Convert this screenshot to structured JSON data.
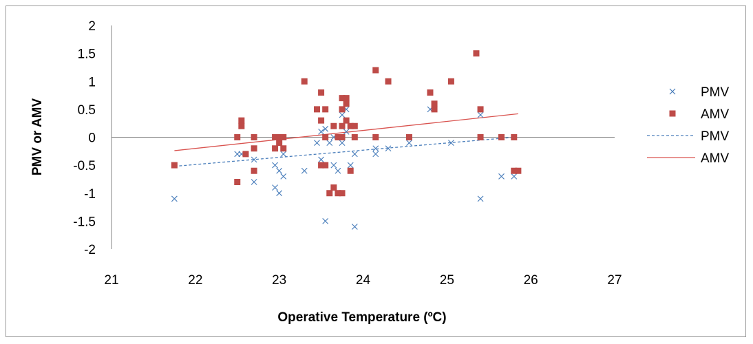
{
  "chart_data": {
    "type": "scatter",
    "title": "",
    "xlabel": "Operative Temperature (ºC)",
    "ylabel": "PMV or AMV",
    "xlim": [
      21,
      27
    ],
    "ylim": [
      -2,
      2
    ],
    "x_ticks": [
      "21",
      "22",
      "23",
      "24",
      "25",
      "26",
      "27"
    ],
    "y_ticks": [
      "2",
      "1.5",
      "1",
      "0.5",
      "0",
      "-0.5",
      "-1",
      "-1.5",
      "-2"
    ],
    "legend_position": "right",
    "series": [
      {
        "name": "PMV",
        "kind": "points",
        "marker": "x",
        "color": "#4a7ebb",
        "points": [
          [
            21.75,
            -1.1
          ],
          [
            22.5,
            -0.3
          ],
          [
            22.55,
            -0.3
          ],
          [
            22.7,
            -0.4
          ],
          [
            22.7,
            -0.8
          ],
          [
            22.95,
            -0.5
          ],
          [
            22.95,
            -0.9
          ],
          [
            23.0,
            -0.6
          ],
          [
            23.0,
            -1.0
          ],
          [
            23.05,
            -0.3
          ],
          [
            23.05,
            -0.7
          ],
          [
            23.3,
            -0.6
          ],
          [
            23.45,
            -0.1
          ],
          [
            23.5,
            -0.4
          ],
          [
            23.5,
            0.1
          ],
          [
            23.55,
            0.15
          ],
          [
            23.55,
            -1.5
          ],
          [
            23.6,
            -0.1
          ],
          [
            23.65,
            0.0
          ],
          [
            23.65,
            -0.5
          ],
          [
            23.7,
            -0.6
          ],
          [
            23.75,
            0.0
          ],
          [
            23.75,
            0.4
          ],
          [
            23.75,
            -0.1
          ],
          [
            23.8,
            0.1
          ],
          [
            23.8,
            0.5
          ],
          [
            23.85,
            -0.5
          ],
          [
            23.9,
            -0.3
          ],
          [
            23.9,
            -1.6
          ],
          [
            24.15,
            -0.2
          ],
          [
            24.15,
            -0.3
          ],
          [
            24.3,
            -0.2
          ],
          [
            24.55,
            -0.1
          ],
          [
            24.8,
            0.5
          ],
          [
            25.05,
            -0.1
          ],
          [
            25.4,
            0.4
          ],
          [
            25.4,
            -1.1
          ],
          [
            25.65,
            -0.7
          ],
          [
            25.8,
            -0.7
          ]
        ]
      },
      {
        "name": "AMV",
        "kind": "points",
        "marker": "square",
        "color": "#be4b48",
        "points": [
          [
            21.75,
            -0.5
          ],
          [
            22.5,
            0.0
          ],
          [
            22.5,
            -0.8
          ],
          [
            22.55,
            0.3
          ],
          [
            22.55,
            0.2
          ],
          [
            22.6,
            -0.3
          ],
          [
            22.7,
            0.0
          ],
          [
            22.7,
            -0.2
          ],
          [
            22.7,
            -0.6
          ],
          [
            22.95,
            0.0
          ],
          [
            22.95,
            -0.2
          ],
          [
            23.0,
            0.0
          ],
          [
            23.0,
            -0.1
          ],
          [
            23.05,
            0.0
          ],
          [
            23.05,
            -0.2
          ],
          [
            23.3,
            1.0
          ],
          [
            23.45,
            0.5
          ],
          [
            23.5,
            0.8
          ],
          [
            23.5,
            0.3
          ],
          [
            23.5,
            -0.5
          ],
          [
            23.55,
            0.5
          ],
          [
            23.55,
            0.0
          ],
          [
            23.55,
            -0.5
          ],
          [
            23.6,
            -1.0
          ],
          [
            23.65,
            0.2
          ],
          [
            23.65,
            -0.9
          ],
          [
            23.7,
            0.0
          ],
          [
            23.7,
            -1.0
          ],
          [
            23.75,
            0.7
          ],
          [
            23.75,
            0.5
          ],
          [
            23.75,
            0.2
          ],
          [
            23.75,
            0.0
          ],
          [
            23.75,
            -1.0
          ],
          [
            23.8,
            0.7
          ],
          [
            23.8,
            0.6
          ],
          [
            23.8,
            0.3
          ],
          [
            23.85,
            0.2
          ],
          [
            23.85,
            -0.6
          ],
          [
            23.9,
            0.2
          ],
          [
            23.9,
            0.0
          ],
          [
            24.15,
            1.2
          ],
          [
            24.15,
            0.0
          ],
          [
            24.3,
            1.0
          ],
          [
            24.55,
            0.0
          ],
          [
            24.8,
            0.8
          ],
          [
            24.85,
            0.6
          ],
          [
            24.85,
            0.5
          ],
          [
            25.05,
            1.0
          ],
          [
            25.35,
            1.5
          ],
          [
            25.4,
            0.5
          ],
          [
            25.4,
            0.0
          ],
          [
            25.65,
            0.0
          ],
          [
            25.8,
            0.0
          ],
          [
            25.8,
            -0.6
          ],
          [
            25.85,
            -0.6
          ]
        ]
      },
      {
        "name": "PMV",
        "kind": "trendline",
        "style": "dashed",
        "color": "#4a7ebb",
        "points": [
          [
            21.75,
            -0.52
          ],
          [
            25.8,
            0.0
          ]
        ]
      },
      {
        "name": "AMV",
        "kind": "trendline",
        "style": "solid",
        "color": "#d9534f",
        "points": [
          [
            21.75,
            -0.24
          ],
          [
            25.85,
            0.42
          ]
        ]
      }
    ]
  }
}
